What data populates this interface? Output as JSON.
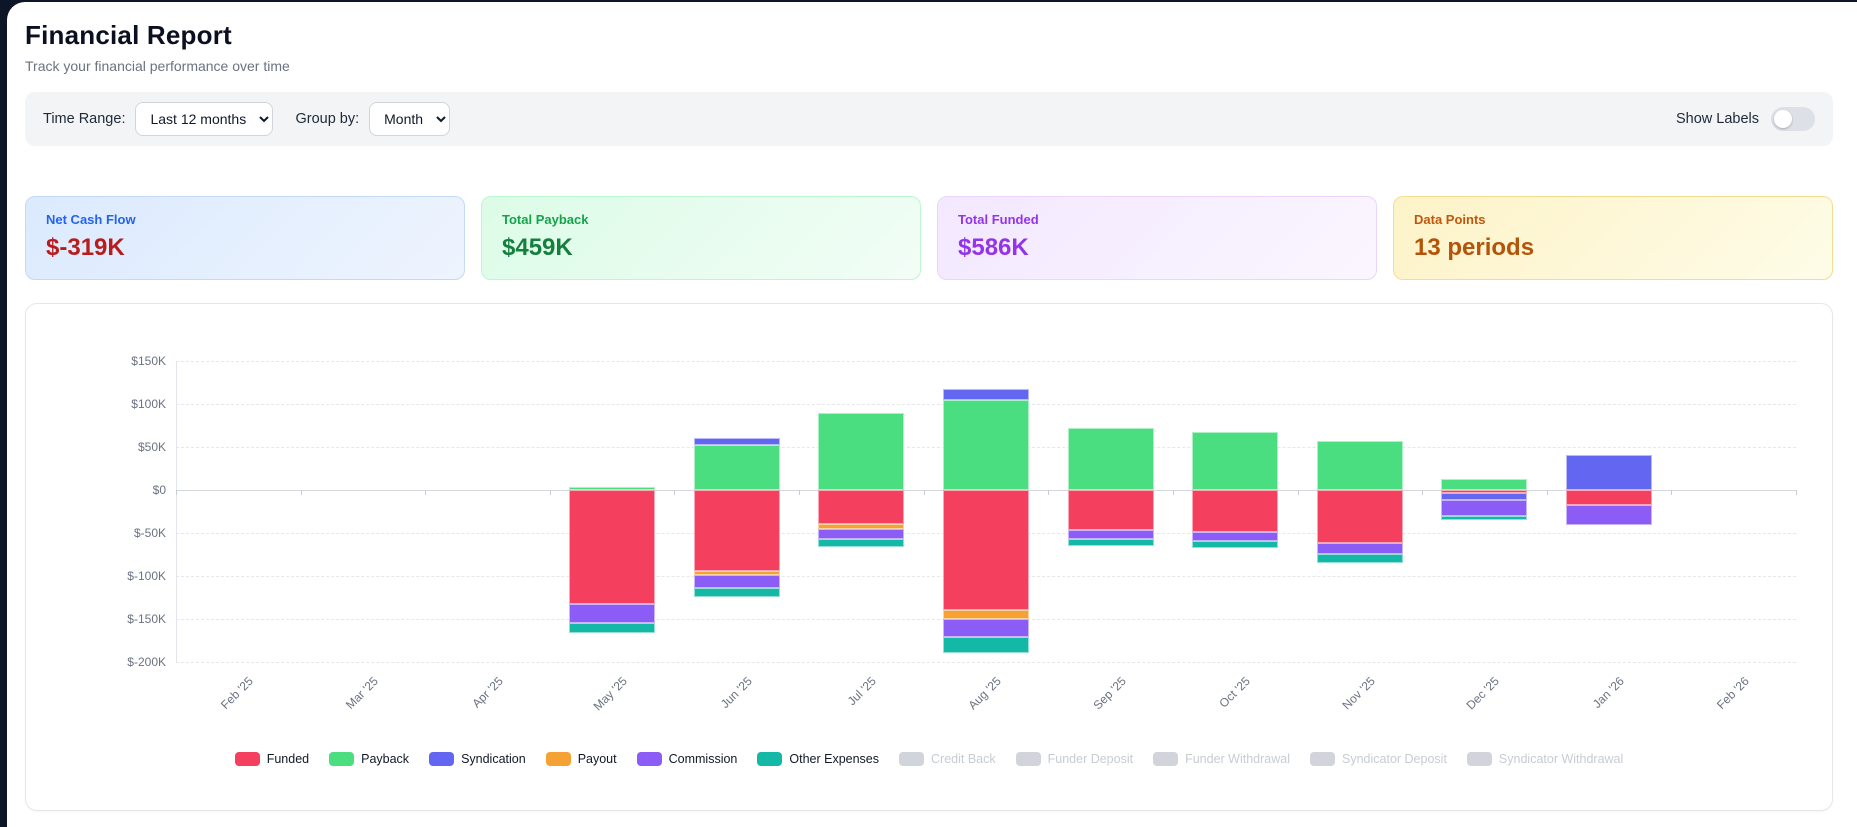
{
  "page": {
    "title": "Financial Report",
    "subtitle": "Track your financial performance over time"
  },
  "toolbar": {
    "time_range_label": "Time Range:",
    "time_range_value": "Last 12 months",
    "group_by_label": "Group by:",
    "group_by_value": "Month",
    "show_labels_label": "Show Labels",
    "show_labels_on": false
  },
  "stat_cards": [
    {
      "label": "Net Cash Flow",
      "value": "$-319K",
      "theme": "blue"
    },
    {
      "label": "Total Payback",
      "value": "$459K",
      "theme": "green"
    },
    {
      "label": "Total Funded",
      "value": "$586K",
      "theme": "purple"
    },
    {
      "label": "Data Points",
      "value": "13 periods",
      "theme": "yellow"
    }
  ],
  "chart_data": {
    "type": "bar",
    "stacked": true,
    "unit": "thousand USD",
    "categories": [
      "Feb '25",
      "Mar '25",
      "Apr '25",
      "May '25",
      "Jun '25",
      "Jul '25",
      "Aug '25",
      "Sep '25",
      "Oct '25",
      "Nov '25",
      "Dec '25",
      "Jan '26",
      "Feb '26"
    ],
    "series": [
      {
        "name": "Funded",
        "color": "#f43f5e",
        "values": [
          0,
          0,
          0,
          -133,
          -94,
          -40,
          -140,
          -47,
          -49,
          -62,
          -4,
          -17,
          0
        ]
      },
      {
        "name": "Payback",
        "color": "#4ade80",
        "values": [
          0,
          0,
          0,
          4,
          52,
          89,
          105,
          72,
          67,
          57,
          13,
          0,
          0
        ]
      },
      {
        "name": "Syndication",
        "color": "#6366f1",
        "values": [
          0,
          0,
          0,
          0,
          8,
          0,
          12,
          0,
          0,
          0,
          -8,
          41,
          0
        ]
      },
      {
        "name": "Payout",
        "color": "#f6a133",
        "values": [
          0,
          0,
          0,
          0,
          -5,
          -5,
          -10,
          0,
          0,
          0,
          0,
          0,
          0
        ]
      },
      {
        "name": "Commission",
        "color": "#8b5cf6",
        "values": [
          0,
          0,
          0,
          -22,
          -15,
          -12,
          -21,
          -10,
          -10,
          -12,
          -18,
          -24,
          0
        ]
      },
      {
        "name": "Other Expenses",
        "color": "#14b8a6",
        "values": [
          0,
          0,
          0,
          -11,
          -10,
          -9,
          -19,
          -8,
          -8,
          -11,
          -5,
          0,
          0
        ]
      }
    ],
    "disabled_series": [
      "Credit Back",
      "Funder Deposit",
      "Funder Withdrawal",
      "Syndicator Deposit",
      "Syndicator Withdrawal"
    ],
    "y_ticks": [
      150,
      100,
      50,
      0,
      -50,
      -100,
      -150,
      -200
    ],
    "y_tick_labels": [
      "$150K",
      "$100K",
      "$50K",
      "$0",
      "$-50K",
      "$-100K",
      "$-150K",
      "$-200K"
    ],
    "ylim": [
      -200,
      150
    ],
    "grid": true,
    "legend_position": "bottom"
  }
}
